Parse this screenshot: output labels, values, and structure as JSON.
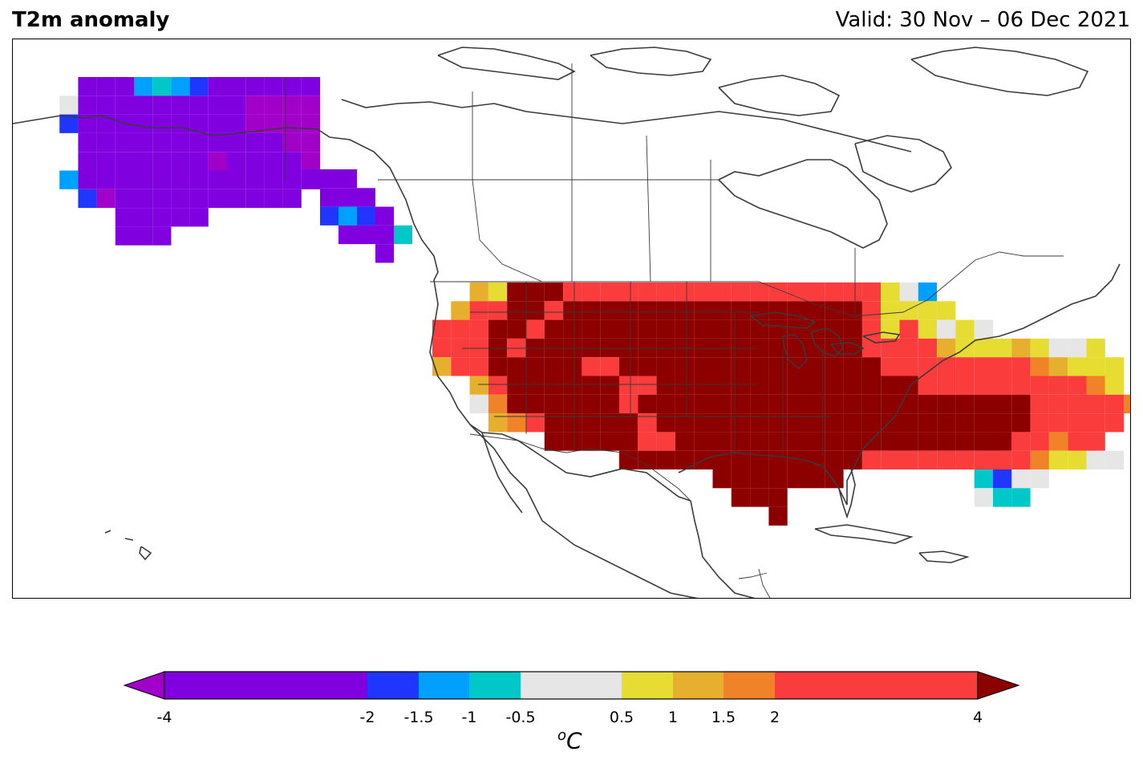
{
  "title": "T2m anomaly",
  "valid": "Valid: 30 Nov – 06 Dec 2021",
  "colorbar": {
    "unit": "C",
    "unit_prefix": "o",
    "ticks": [
      "-4",
      "-2",
      "-1.5",
      "-1",
      "-0.5",
      "0.5",
      "1",
      "1.5",
      "2",
      "4"
    ],
    "bins": [
      {
        "from": -4,
        "to": -2,
        "color": "#8000e0"
      },
      {
        "from": -2,
        "to": -1.5,
        "color": "#2036ff"
      },
      {
        "from": -1.5,
        "to": -1,
        "color": "#00a0ff"
      },
      {
        "from": -1,
        "to": -0.5,
        "color": "#00c8c8"
      },
      {
        "from": -0.5,
        "to": 0.5,
        "color": "#e6e6e6"
      },
      {
        "from": 0.5,
        "to": 1,
        "color": "#e6dc32"
      },
      {
        "from": 1,
        "to": 1.5,
        "color": "#e6af2d"
      },
      {
        "from": 1.5,
        "to": 2,
        "color": "#f08228"
      },
      {
        "from": 2,
        "to": 4,
        "color": "#fa3c3c"
      }
    ],
    "under_color": "#a000c8",
    "over_color": "#8c0000"
  },
  "legend_colors": {
    "A": "#a000c8",
    "V": "#8000e0",
    "B": "#2036ff",
    "L": "#00a0ff",
    "T": "#00c8c8",
    "G": "#e6e6e6",
    "Y": "#e6dc32",
    "O": "#e6af2d",
    "N": "#f08228",
    "R": "#fa3c3c",
    "D": "#8c0000"
  }
}
